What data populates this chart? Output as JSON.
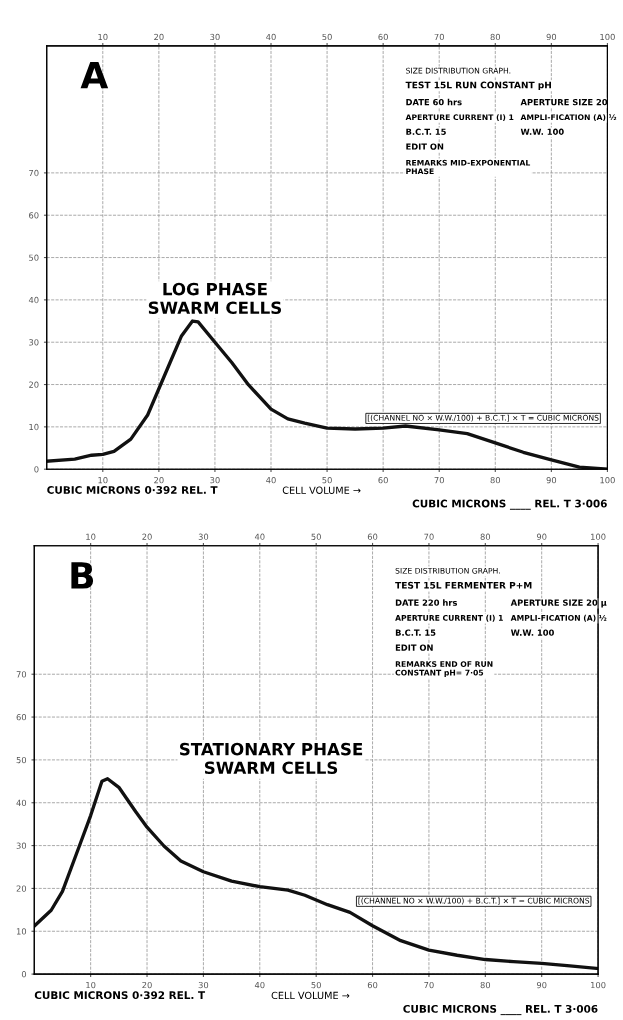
{
  "chart_data": [
    {
      "type": "line",
      "title": "A",
      "xlim": [
        0,
        100
      ],
      "ylim": [
        0,
        100
      ],
      "xticks": [
        10,
        20,
        30,
        40,
        50,
        60,
        70,
        80,
        90,
        100
      ],
      "yticks": [
        0,
        10,
        20,
        30,
        40,
        50,
        60,
        70
      ],
      "x2lim": [
        0,
        100
      ],
      "x2ticks": [
        10,
        20,
        30,
        40,
        50,
        60,
        70,
        80,
        90,
        100
      ],
      "grid": true,
      "marker": "none",
      "line_style": "solid",
      "series": [
        {
          "color": "#111111",
          "x": [
            0,
            5,
            8,
            10,
            12,
            15,
            18,
            20,
            22,
            24,
            26,
            27,
            30,
            33,
            36,
            40,
            43,
            46,
            50,
            55,
            60,
            64,
            70,
            75,
            80,
            85,
            90,
            95,
            100
          ],
          "values": [
            1.9,
            2.4,
            3.3,
            3.5,
            4.2,
            7.1,
            12.8,
            19,
            25.2,
            31.4,
            35,
            34.8,
            30,
            25.2,
            19.9,
            14.2,
            11.9,
            10.9,
            9.7,
            9.5,
            9.7,
            10.2,
            9.3,
            8.4,
            6.2,
            4,
            2.2,
            0.5,
            0
          ]
        }
      ],
      "annotations": [
        "SIZE DISTRIBUTION GRAPH.",
        "TEST 15L RUN CONSTANT pH",
        "DATE 60 hrs",
        "APERTURE SIZE 20",
        "APERTURE CURRENT (I) 1",
        "AMPLI-FICATION (A) ½",
        "B.C.T. 15",
        "W.W. 100",
        "EDIT ON",
        "REMARKS MID-EXPONENTIAL\nPHASE",
        "LOG PHASE\nSWARM CELLS",
        "[(CHANNEL NO × W.W./100) + B.C.T.] × T = CUBIC MICRONS",
        "CUBIC MICRONS 0·392 REL. T",
        "CELL VOLUME →",
        "CUBIC MICRONS ____ REL. T 3·006"
      ]
    },
    {
      "type": "line",
      "title": "B",
      "xlim": [
        0,
        100
      ],
      "ylim": [
        0,
        100
      ],
      "xticks": [
        10,
        20,
        30,
        40,
        50,
        60,
        70,
        80,
        90,
        100
      ],
      "yticks": [
        0,
        10,
        20,
        30,
        40,
        50,
        60,
        70
      ],
      "x2lim": [
        0,
        100
      ],
      "x2ticks": [
        10,
        20,
        30,
        40,
        50,
        60,
        70,
        80,
        90,
        100
      ],
      "grid": true,
      "marker": "none",
      "line_style": "solid",
      "series": [
        {
          "color": "#111111",
          "x": [
            0,
            3,
            5,
            8,
            10,
            12,
            13,
            15,
            18,
            20,
            23,
            26,
            30,
            35,
            40,
            45,
            48,
            52,
            56,
            60,
            65,
            70,
            75,
            80,
            85,
            90,
            95,
            100
          ],
          "values": [
            11.2,
            14.9,
            19.3,
            29.9,
            37,
            45,
            45.6,
            43.6,
            37.9,
            34.3,
            29.9,
            26.4,
            23.9,
            21.7,
            20.4,
            19.6,
            18.4,
            16.2,
            14.4,
            11.3,
            7.8,
            5.6,
            4.4,
            3.4,
            2.9,
            2.5,
            1.9,
            1.3
          ]
        }
      ],
      "annotations": [
        "SIZE DISTRIBUTION GRAPH.",
        "TEST 15L FERMENTER P+M",
        "DATE 220 hrs",
        "APERTURE SIZE 20 μ",
        "APERTURE CURRENT (I) 1",
        "AMPLI-FICATION (A) ½",
        "B.C.T. 15",
        "W.W. 100",
        "EDIT ON",
        "REMARKS END OF RUN\nCONSTANT pH= 7·05",
        "STATIONARY PHASE\nSWARM CELLS",
        "[(CHANNEL NO × W.W./100) + B.C.T.] × T = CUBIC MICRONS",
        "CUBIC MICRONS 0·392 REL. T",
        "CELL VOLUME →",
        "CUBIC MICRONS ____ REL. T 3·006"
      ]
    }
  ]
}
